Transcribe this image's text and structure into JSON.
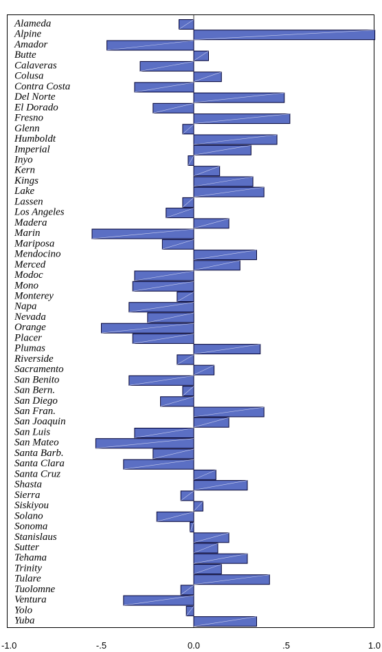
{
  "chart_data": {
    "type": "bar",
    "orientation": "horizontal",
    "categories": [
      "Alameda",
      "Alpine",
      "Amador",
      "Butte",
      "Calaveras",
      "Colusa",
      "Contra Costa",
      "Del Norte",
      "El Dorado",
      "Fresno",
      "Glenn",
      "Humboldt",
      "Imperial",
      "Inyo",
      "Kern",
      "Kings",
      "Lake",
      "Lassen",
      "Los Angeles",
      "Madera",
      "Marin",
      "Mariposa",
      "Mendocino",
      "Merced",
      "Modoc",
      "Mono",
      "Monterey",
      "Napa",
      "Nevada",
      "Orange",
      "Placer",
      "Plumas",
      "Riverside",
      "Sacramento",
      "San Benito",
      "San Bern.",
      "San Diego",
      "San Fran.",
      "San Joaquin",
      "San Luis",
      "San Mateo",
      "Santa Barb.",
      "Santa Clara",
      "Santa Cruz",
      "Shasta",
      "Sierra",
      "Siskiyou",
      "Solano",
      "Sonoma",
      "Stanislaus",
      "Sutter",
      "Tehama",
      "Trinity",
      "Tulare",
      "Tuolomne",
      "Ventura",
      "Yolo",
      "Yuba"
    ],
    "values": [
      -0.08,
      0.98,
      -0.47,
      0.08,
      -0.29,
      0.15,
      -0.32,
      0.49,
      -0.22,
      0.52,
      -0.06,
      0.45,
      0.31,
      -0.03,
      0.14,
      0.32,
      0.38,
      -0.06,
      -0.15,
      0.19,
      -0.55,
      -0.17,
      0.34,
      0.25,
      -0.32,
      -0.33,
      -0.09,
      -0.35,
      -0.25,
      -0.5,
      -0.33,
      0.36,
      -0.09,
      0.11,
      -0.35,
      -0.06,
      -0.18,
      0.38,
      0.19,
      -0.32,
      -0.53,
      -0.22,
      -0.38,
      0.12,
      0.29,
      -0.07,
      0.05,
      -0.2,
      -0.02,
      0.19,
      0.13,
      0.29,
      0.15,
      0.41,
      -0.07,
      -0.38,
      -0.04,
      0.34
    ],
    "xlim": [
      -1.0,
      1.0
    ],
    "xticks": [
      "-1.0",
      "-.5",
      "0.0",
      ".5",
      "1.0"
    ],
    "title": "",
    "xlabel": "",
    "ylabel": "",
    "grid": false,
    "colors": {
      "bar_fill": "#5b6fc4",
      "bar_stroke": "#000033",
      "axis": "#000000"
    }
  }
}
